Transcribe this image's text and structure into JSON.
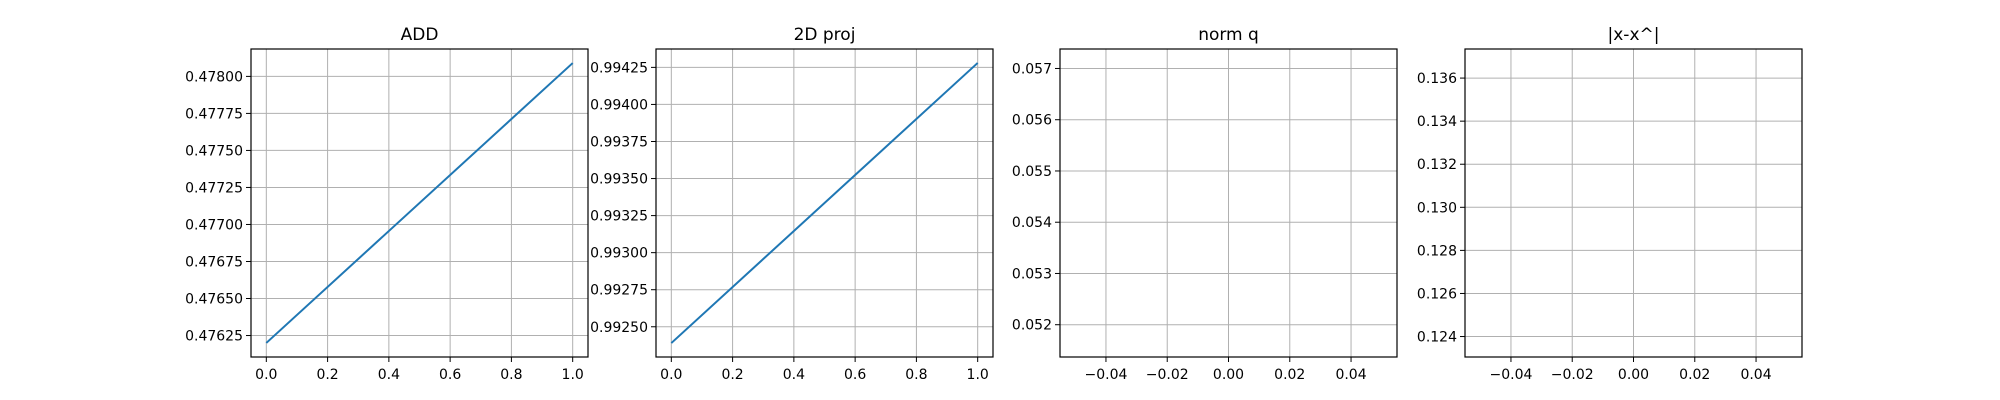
{
  "chart_data": [
    {
      "type": "line",
      "title": "ADD",
      "xlabel": "",
      "ylabel": "",
      "xlim": [
        -0.05,
        1.05
      ],
      "ylim": [
        0.476105,
        0.478185
      ],
      "xticks": [
        0.0,
        0.2,
        0.4,
        0.6,
        0.8,
        1.0
      ],
      "xtick_labels": [
        "0.0",
        "0.2",
        "0.4",
        "0.6",
        "0.8",
        "1.0"
      ],
      "yticks": [
        0.47625,
        0.4765,
        0.47675,
        0.477,
        0.47725,
        0.4775,
        0.47775,
        0.478
      ],
      "ytick_labels": [
        "0.47625",
        "0.47650",
        "0.47675",
        "0.47700",
        "0.47725",
        "0.47750",
        "0.47775",
        "0.47800"
      ],
      "grid": true,
      "series": [
        {
          "color": "#1f77b4",
          "x": [
            0,
            1
          ],
          "y": [
            0.4762,
            0.47809
          ]
        }
      ]
    },
    {
      "type": "line",
      "title": "2D proj",
      "xlabel": "",
      "ylabel": "",
      "xlim": [
        -0.05,
        1.05
      ],
      "ylim": [
        0.992296,
        0.994374
      ],
      "xticks": [
        0.0,
        0.2,
        0.4,
        0.6,
        0.8,
        1.0
      ],
      "xtick_labels": [
        "0.0",
        "0.2",
        "0.4",
        "0.6",
        "0.8",
        "1.0"
      ],
      "yticks": [
        0.9925,
        0.99275,
        0.993,
        0.99325,
        0.9935,
        0.99375,
        0.994,
        0.99425
      ],
      "ytick_labels": [
        "0.99250",
        "0.99275",
        "0.99300",
        "0.99325",
        "0.99350",
        "0.99375",
        "0.99400",
        "0.99425"
      ],
      "grid": true,
      "series": [
        {
          "color": "#1f77b4",
          "x": [
            0,
            1
          ],
          "y": [
            0.99239,
            0.99428
          ]
        }
      ]
    },
    {
      "type": "line",
      "title": "norm q",
      "xlabel": "",
      "ylabel": "",
      "xlim": [
        -0.055,
        0.055
      ],
      "ylim": [
        0.05137,
        0.05738
      ],
      "xticks": [
        -0.04,
        -0.02,
        0.0,
        0.02,
        0.04
      ],
      "xtick_labels": [
        "−0.04",
        "−0.02",
        "0.00",
        "0.02",
        "0.04"
      ],
      "yticks": [
        0.052,
        0.053,
        0.054,
        0.055,
        0.056,
        0.057
      ],
      "ytick_labels": [
        "0.052",
        "0.053",
        "0.054",
        "0.055",
        "0.056",
        "0.057"
      ],
      "grid": true,
      "series": []
    },
    {
      "type": "line",
      "title": "|x-x^|",
      "xlabel": "",
      "ylabel": "",
      "xlim": [
        -0.055,
        0.055
      ],
      "ylim": [
        0.12305,
        0.13735
      ],
      "xticks": [
        -0.04,
        -0.02,
        0.0,
        0.02,
        0.04
      ],
      "xtick_labels": [
        "−0.04",
        "−0.02",
        "0.00",
        "0.02",
        "0.04"
      ],
      "yticks": [
        0.124,
        0.126,
        0.128,
        0.13,
        0.132,
        0.134,
        0.136
      ],
      "ytick_labels": [
        "0.124",
        "0.126",
        "0.128",
        "0.130",
        "0.132",
        "0.134",
        "0.136"
      ],
      "grid": true,
      "series": []
    }
  ]
}
